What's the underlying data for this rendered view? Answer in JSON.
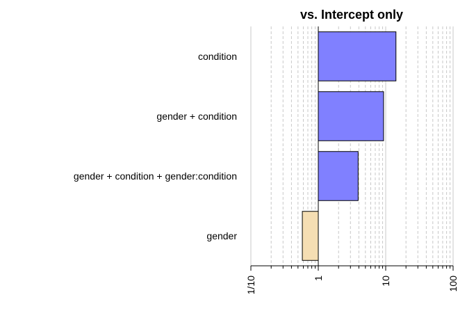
{
  "chart_data": {
    "type": "bar",
    "orientation": "horizontal",
    "title": "vs. Intercept only",
    "xlabel": "",
    "ylabel": "",
    "x_scale": "log",
    "xlim": [
      0.1,
      100
    ],
    "grid": true,
    "categories": [
      "condition",
      "gender + condition",
      "gender + condition + gender:condition",
      "gender"
    ],
    "values": [
      14.2,
      9.3,
      3.9,
      0.58
    ],
    "colors": [
      "#8080FF",
      "#8080FF",
      "#8080FF",
      "#F5DEB3"
    ],
    "x_ticks": [
      {
        "value": 0.1,
        "label": "1/10"
      },
      {
        "value": 1,
        "label": "1"
      },
      {
        "value": 10,
        "label": "10"
      },
      {
        "value": 100,
        "label": "100"
      }
    ]
  }
}
